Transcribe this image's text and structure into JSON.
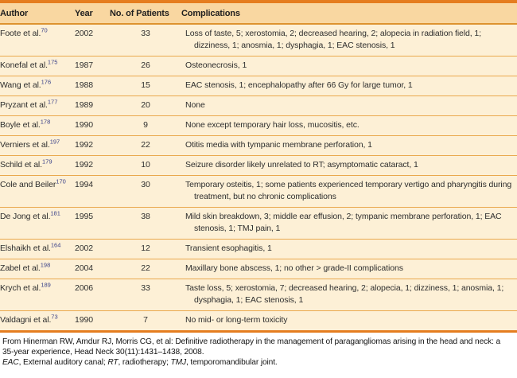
{
  "table": {
    "columns": [
      "Author",
      "Year",
      "No. of Patients",
      "Complications"
    ],
    "rows": [
      {
        "author": "Foote et al.",
        "ref": "70",
        "year": "2002",
        "patients": "33",
        "complications": "Loss of taste, 5; xerostomia, 2; decreased hearing, 2; alopecia in radiation field, 1; dizziness, 1; anosmia, 1; dysphagia, 1; EAC stenosis, 1"
      },
      {
        "author": "Konefal et al.",
        "ref": "175",
        "year": "1987",
        "patients": "26",
        "complications": "Osteonecrosis, 1"
      },
      {
        "author": "Wang et al.",
        "ref": "176",
        "year": "1988",
        "patients": "15",
        "complications": "EAC stenosis, 1; encephalopathy after 66 Gy for large tumor, 1"
      },
      {
        "author": "Pryzant et al.",
        "ref": "177",
        "year": "1989",
        "patients": "20",
        "complications": "None"
      },
      {
        "author": "Boyle et al.",
        "ref": "178",
        "year": "1990",
        "patients": "9",
        "complications": "None except temporary hair loss, mucositis, etc."
      },
      {
        "author": "Verniers et al.",
        "ref": "197",
        "year": "1992",
        "patients": "22",
        "complications": "Otitis media with tympanic membrane perforation, 1"
      },
      {
        "author": "Schild et al.",
        "ref": "179",
        "year": "1992",
        "patients": "10",
        "complications": "Seizure disorder likely unrelated to RT; asymptomatic cataract, 1"
      },
      {
        "author": "Cole and Beiler",
        "ref": "170",
        "year": "1994",
        "patients": "30",
        "complications": "Temporary osteitis, 1; some patients experienced temporary vertigo and pharyngitis during treatment, but no chronic complications"
      },
      {
        "author": "De Jong et al.",
        "ref": "181",
        "year": "1995",
        "patients": "38",
        "complications": "Mild skin breakdown, 3; middle ear effusion, 2; tympanic membrane perforation, 1; EAC stenosis, 1; TMJ pain, 1"
      },
      {
        "author": "Elshaikh et al.",
        "ref": "164",
        "year": "2002",
        "patients": "12",
        "complications": "Transient esophagitis, 1"
      },
      {
        "author": "Zabel et al.",
        "ref": "198",
        "year": "2004",
        "patients": "22",
        "complications": "Maxillary bone abscess, 1; no other > grade-II complications"
      },
      {
        "author": "Krych et al.",
        "ref": "189",
        "year": "2006",
        "patients": "33",
        "complications": "Taste loss, 5; xerostomia, 7; decreased hearing, 2; alopecia, 1; dizziness, 1; anosmia, 1; dysphagia, 1; EAC stenosis, 1"
      },
      {
        "author": "Valdagni et al.",
        "ref": "73",
        "year": "1990",
        "patients": "7",
        "complications": "No mid- or long-term toxicity"
      }
    ]
  },
  "footnotes": {
    "source": "From Hinerman RW, Amdur RJ, Morris CG, et al: Definitive radiotherapy in the management of paragangliomas arising in the head and neck: a 35-year experience, Head Neck 30(11):1431–1438, 2008.",
    "abbreviations": [
      {
        "abbr": "EAC",
        "definition": "External auditory canal"
      },
      {
        "abbr": "RT",
        "definition": "radiotherapy"
      },
      {
        "abbr": "TMJ",
        "definition": "temporomandibular joint"
      }
    ],
    "abbr_terminator": "."
  },
  "colors": {
    "accent_orange": "#e57d1f",
    "header_bg": "#f9d7a1",
    "row_bg": "#fdf0d6",
    "row_rule": "#eaa94e",
    "header_rule": "#dd9330",
    "reference_blue": "#3b4289",
    "text": "#2e2e2e"
  }
}
